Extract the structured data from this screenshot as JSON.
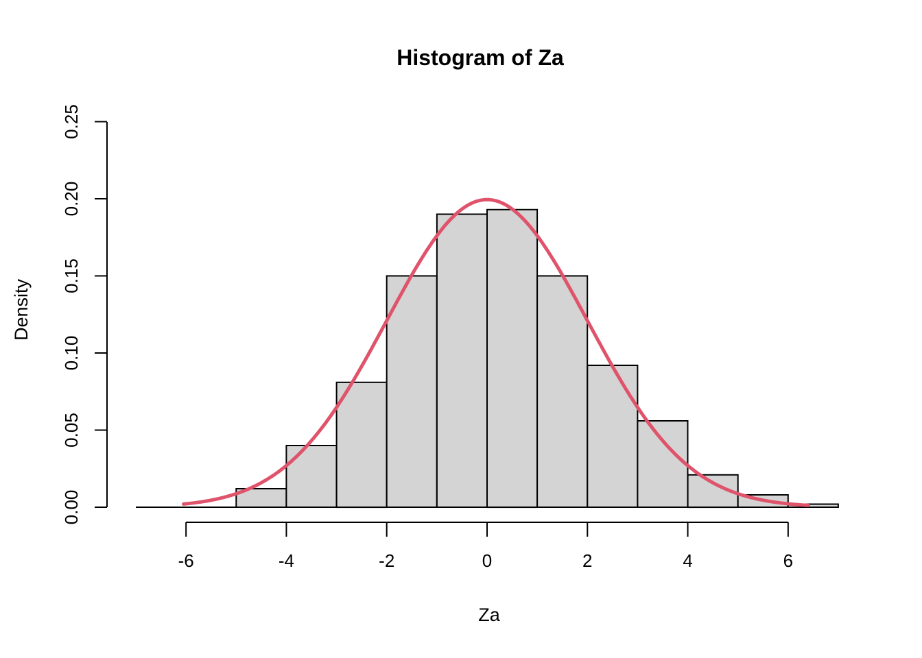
{
  "chart_data": {
    "type": "bar",
    "subtype": "histogram-with-density-curve",
    "title": "Histogram of Za",
    "xlabel": "Za",
    "ylabel": "Density",
    "x_ticks": [
      -6,
      -4,
      -2,
      0,
      2,
      4,
      6
    ],
    "x_tick_labels": [
      "-6",
      "-4",
      "-2",
      "0",
      "2",
      "4",
      "6"
    ],
    "y_ticks": [
      0.0,
      0.05,
      0.1,
      0.15,
      0.2,
      0.25
    ],
    "y_tick_labels": [
      "0.00",
      "0.05",
      "0.10",
      "0.15",
      "0.20",
      "0.25"
    ],
    "xlim": [
      -7,
      7
    ],
    "ylim": [
      0.0,
      0.25
    ],
    "grid": false,
    "legend": "none",
    "bin_breaks": [
      -7,
      -6,
      -5,
      -4,
      -3,
      -2,
      -1,
      0,
      1,
      2,
      3,
      4,
      5,
      6,
      7
    ],
    "bin_densities": [
      0,
      0,
      0.012,
      0.04,
      0.081,
      0.15,
      0.19,
      0.193,
      0.15,
      0.092,
      0.056,
      0.021,
      0.008,
      0.002
    ],
    "curve": {
      "type": "normal-density",
      "mean": 0,
      "sd": 2,
      "peak_density": 0.1995,
      "x_start": -6.05,
      "x_end": 6.4,
      "color": "#DF536B",
      "line_width": 5
    },
    "bar_fill": "#D4D4D4",
    "bar_stroke": "#000000",
    "axis_color": "#000000",
    "background": "#FFFFFF"
  }
}
